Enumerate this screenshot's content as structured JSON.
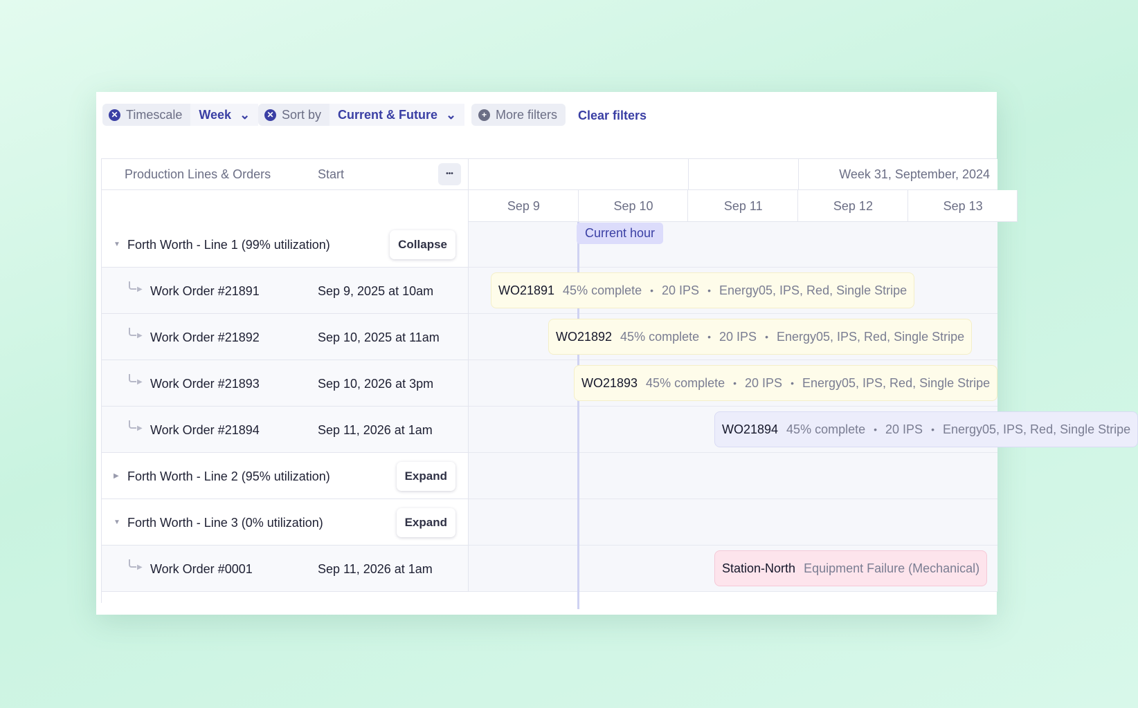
{
  "filters": [
    {
      "label": "Timescale",
      "value": "Week"
    },
    {
      "label": "Sort by",
      "value": "Current & Future"
    }
  ],
  "more_filters": "More filters",
  "clear_filters": "Clear filters",
  "table": {
    "columns": [
      "Production Lines & Orders",
      "Start"
    ],
    "week": "Week 31, September, 2024",
    "days": [
      "Sep 9",
      "Sep 10",
      "Sep 11",
      "Sep 12",
      "Sep 13"
    ],
    "current_hour": "Current hour",
    "rows": [
      {
        "kind": "group",
        "label": "Forth Worth - Line 1 (99% utilization)",
        "action": "Collapse",
        "open": true
      },
      {
        "kind": "order",
        "name": "Work Order #21891",
        "start": "Sep 9, 2025 at 10am",
        "bar": {
          "code": "WO21891",
          "details": [
            "45% complete",
            "20 IPS",
            "Energy05, IPS, Red, Single Stripe"
          ],
          "tone": "yellow"
        }
      },
      {
        "kind": "order",
        "name": "Work Order #21892",
        "start": "Sep 10, 2025 at 11am",
        "bar": {
          "code": "WO21892",
          "details": [
            "45% complete",
            "20 IPS",
            "Energy05, IPS, Red, Single Stripe"
          ],
          "tone": "yellow"
        }
      },
      {
        "kind": "order",
        "name": "Work Order #21893",
        "start": "Sep 10, 2026 at 3pm",
        "bar": {
          "code": "WO21893",
          "details": [
            "45% complete",
            "20 IPS",
            "Energy05, IPS, Red, Single Stripe"
          ],
          "tone": "yellow"
        }
      },
      {
        "kind": "order",
        "name": "Work Order #21894",
        "start": "Sep 11, 2026 at 1am",
        "bar": {
          "code": "WO21894",
          "details": [
            "45% complete",
            "20 IPS",
            "Energy05, IPS, Red, Single Stripe"
          ],
          "tone": "lavender"
        }
      },
      {
        "kind": "group",
        "label": "Forth Worth - Line 2 (95% utilization)",
        "action": "Expand",
        "open": false
      },
      {
        "kind": "group",
        "label": "Forth Worth - Line 3 (0% utilization)",
        "action": "Expand",
        "open": true
      },
      {
        "kind": "order",
        "name": "Work Order #0001",
        "start": "Sep 11, 2026 at 1am",
        "bar": {
          "code": "Station-North",
          "details": [
            "Equipment Failure (Mechanical)"
          ],
          "tone": "pink"
        }
      }
    ]
  }
}
